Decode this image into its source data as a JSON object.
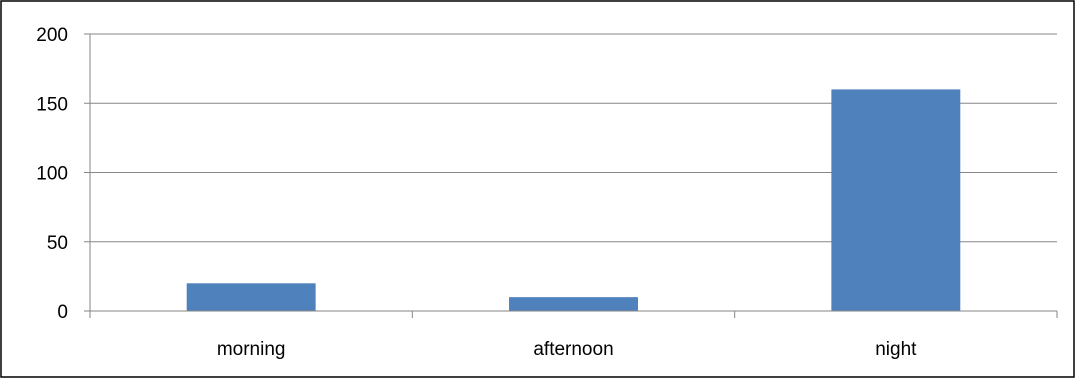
{
  "chart_data": {
    "type": "bar",
    "categories": [
      "morning",
      "afternoon",
      "night"
    ],
    "values": [
      20,
      10,
      160
    ],
    "ylim": [
      0,
      200
    ],
    "yticks": [
      0,
      50,
      100,
      150,
      200
    ],
    "grid": true,
    "legend": "none",
    "bar_color": "#4F81BD",
    "gridline_color": "#868686"
  }
}
